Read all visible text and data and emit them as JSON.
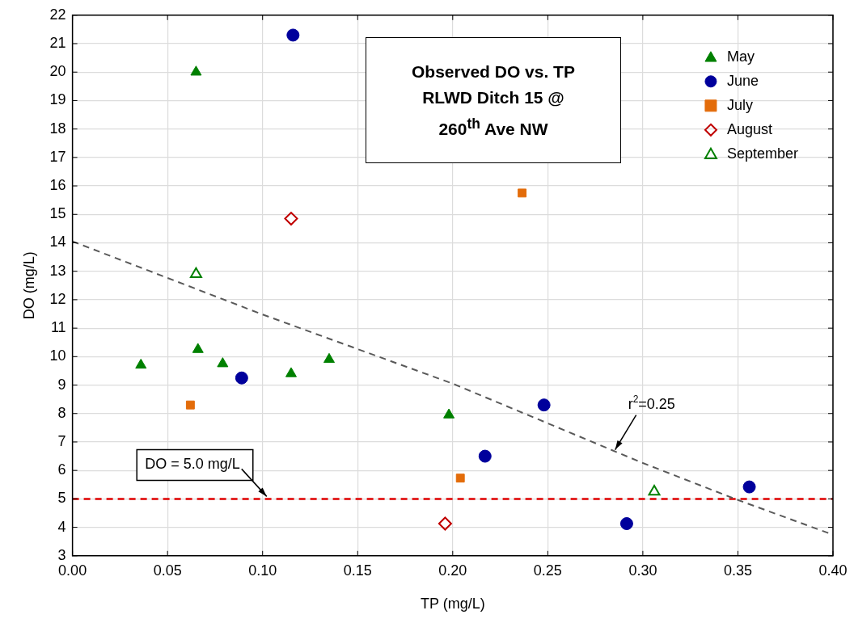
{
  "chart_data": {
    "type": "scatter",
    "title": "Observed DO vs. TP\nRLWD Ditch 15 @\n260$^{th}$ Ave NW",
    "xlabel": "TP (mg/L)",
    "ylabel": "DO (mg/L)",
    "xlim": [
      0,
      0.4
    ],
    "xticks": [
      {
        "value": 0,
        "label": "0.00"
      },
      {
        "value": 0.05,
        "label": "0.05"
      },
      {
        "value": 0.1,
        "label": "0.10"
      },
      {
        "value": 0.15,
        "label": "0.15"
      },
      {
        "value": 0.2,
        "label": "0.20"
      },
      {
        "value": 0.25,
        "label": "0.25"
      },
      {
        "value": 0.3,
        "label": "0.30"
      },
      {
        "value": 0.35,
        "label": "0.35"
      },
      {
        "value": 0.4,
        "label": "0.40"
      }
    ],
    "ylim": [
      3,
      22
    ],
    "yticks": [
      3,
      4,
      5,
      6,
      7,
      8,
      9,
      10,
      11,
      12,
      13,
      14,
      15,
      16,
      17,
      18,
      19,
      20,
      21,
      22
    ],
    "grid": true,
    "legend": "top right",
    "series": [
      {
        "name": "May",
        "color": "#008000",
        "marker": "triangle",
        "x": [
          0.036,
          0.065,
          0.066,
          0.079,
          0.115,
          0.135,
          0.198
        ],
        "values": [
          9.7,
          20.0,
          10.25,
          9.75,
          9.4,
          9.9,
          7.95
        ]
      },
      {
        "name": "June",
        "color": "#00009c",
        "marker": "circle",
        "x": [
          0.116,
          0.089,
          0.217,
          0.248,
          0.2915,
          0.356
        ],
        "values": [
          21.3,
          9.25,
          6.5,
          8.3,
          4.13,
          5.42
        ]
      },
      {
        "name": "July",
        "color": "#e36c0a",
        "marker": "square",
        "x": [
          0.062,
          0.204,
          0.2365
        ],
        "values": [
          8.3,
          5.73,
          15.75
        ]
      },
      {
        "name": "August",
        "color": "#c00000",
        "marker": "diamond",
        "x": [
          0.115,
          0.196
        ],
        "values": [
          14.85,
          4.13
        ]
      },
      {
        "name": "September",
        "color": "#008000",
        "marker": "triangle",
        "x": [
          0.065,
          0.306
        ],
        "values": [
          12.9,
          5.25
        ]
      },
      {
        "type": "line",
        "color": "#595959",
        "line_style": "dashed",
        "marker": "none",
        "x": [
          0,
          0.1,
          0.2,
          0.3,
          0.35,
          0.4
        ],
        "values": [
          14.05,
          11.48,
          9.05,
          6.26,
          4.96,
          3.74
        ]
      }
    ],
    "ref_lines": [
      {
        "axis": "y",
        "value": 5,
        "color": "#e00000",
        "line_style": "dashed"
      }
    ],
    "annotations": [
      {
        "text": "DO = 5.0 mg/L",
        "x": 0.103,
        "y": 5
      },
      {
        "text": "r$^{2}$=0.25",
        "x": 0.285,
        "y": 6.7
      }
    ]
  }
}
